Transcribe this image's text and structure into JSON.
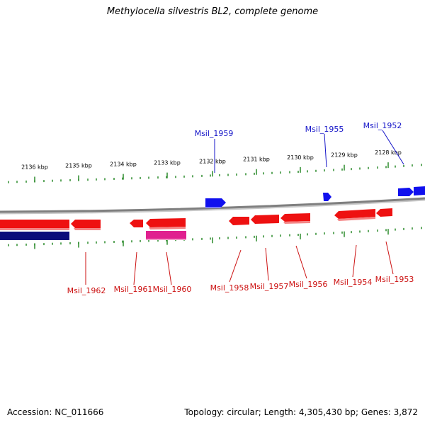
{
  "title": "Methylocella silvestris BL2, complete genome",
  "footer": {
    "accession": "Accession: NC_011666",
    "summary": "Topology: circular; Length: 4,305,430 bp; Genes: 3,872"
  },
  "colors": {
    "backbone": "#7f7f7f",
    "tick": "#2a8a2a",
    "forward_gene": "#1010ee",
    "reverse_gene": "#ee1111",
    "label_forward": "#1515c8",
    "label_reverse": "#cc1111",
    "rna_feature": "#e0208f",
    "other_feature": "#0b0b7a"
  },
  "scale_labels": [
    "2136 kbp",
    "2135 kbp",
    "2134 kbp",
    "2133 kbp",
    "2132 kbp",
    "2131 kbp",
    "2130 kbp",
    "2129 kbp",
    "2128 kbp"
  ],
  "gene_labels_top": [
    "Msil_1959",
    "Msil_1955",
    "Msil_1952"
  ],
  "gene_labels_bottom": [
    "Msil_1962",
    "Msil_1961",
    "Msil_1960",
    "Msil_1958",
    "Msil_1957",
    "Msil_1956",
    "Msil_1954",
    "Msil_1953"
  ]
}
